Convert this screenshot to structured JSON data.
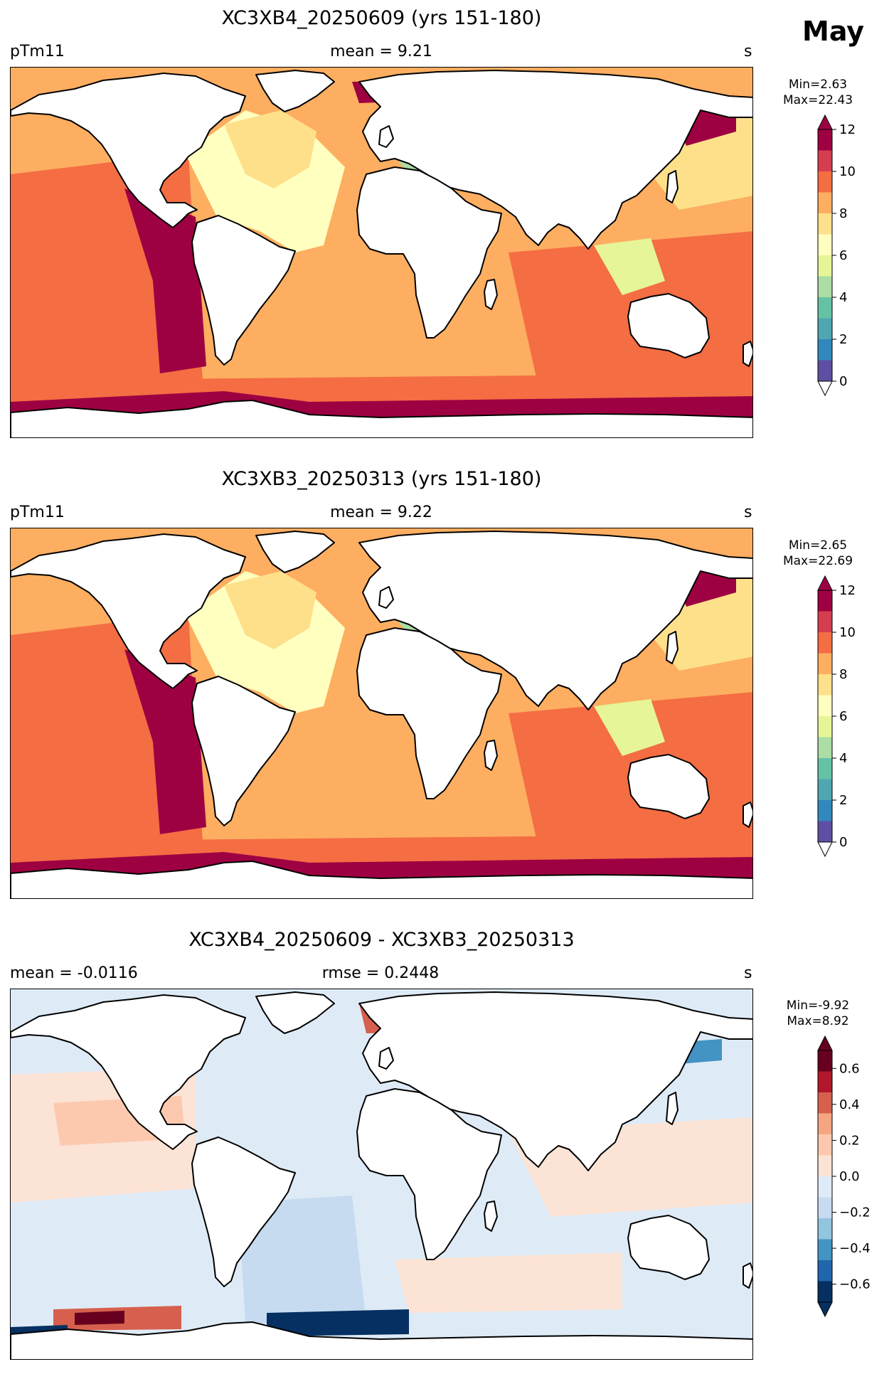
{
  "month": "May",
  "panels": [
    {
      "id": "p1",
      "title": "XC3XB4_20250609 (yrs 151-180)",
      "left_label": "pTm11",
      "center_label": "mean = 9.21",
      "right_label": "s",
      "min_text": "Min=2.63",
      "max_text": "Max=22.43",
      "colormap": "spectral",
      "colorbar_ticks": [
        "0",
        "2",
        "4",
        "6",
        "8",
        "10",
        "12"
      ]
    },
    {
      "id": "p2",
      "title": "XC3XB3_20250313 (yrs 151-180)",
      "left_label": "pTm11",
      "center_label": "mean = 9.22",
      "right_label": "s",
      "min_text": "Min=2.65",
      "max_text": "Max=22.69",
      "colormap": "spectral",
      "colorbar_ticks": [
        "0",
        "2",
        "4",
        "6",
        "8",
        "10",
        "12"
      ]
    },
    {
      "id": "p3",
      "title": "XC3XB4_20250609 - XC3XB3_20250313",
      "left_label": "mean = -0.0116",
      "center_label": "rmse = 0.2448",
      "right_label": "s",
      "min_text": "Min=-9.92",
      "max_text": "Max=8.92",
      "colormap": "diverging",
      "colorbar_ticks": [
        "−0.6",
        "−0.4",
        "−0.2",
        "0.0",
        "0.2",
        "0.4",
        "0.6"
      ]
    }
  ],
  "colors": {
    "spectral": [
      "#5e4fa2",
      "#3288bd",
      "#4fa7b1",
      "#66c2a5",
      "#abdda4",
      "#e6f598",
      "#ffffbf",
      "#fee08b",
      "#fdae61",
      "#f46d43",
      "#d53e4f",
      "#9e0142"
    ],
    "diverging": [
      "#053061",
      "#2166ac",
      "#4393c3",
      "#92c5de",
      "#c6dbef",
      "#deebf7",
      "#fbe3d5",
      "#fcc9ae",
      "#f4a582",
      "#d6604d",
      "#b2182b",
      "#67001f"
    ],
    "land": "#ffffff",
    "coast": "#000000"
  }
}
